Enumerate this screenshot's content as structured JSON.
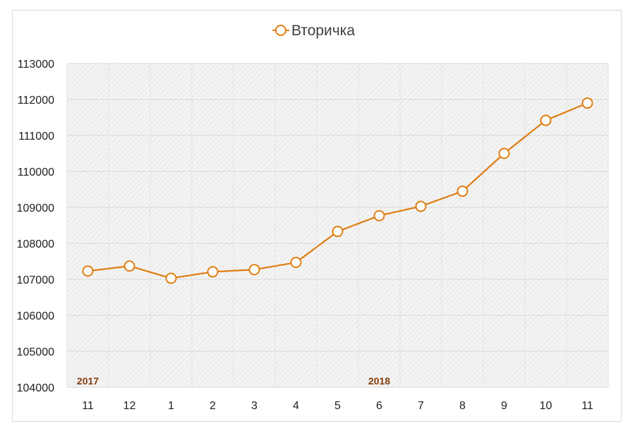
{
  "chart_data": {
    "type": "line",
    "title": "",
    "xlabel": "",
    "ylabel": "",
    "categories": [
      "11",
      "12",
      "1",
      "2",
      "3",
      "4",
      "5",
      "6",
      "7",
      "8",
      "9",
      "10",
      "11"
    ],
    "series": [
      {
        "name": "Вторичка",
        "color": "#e07d10",
        "values": [
          107230,
          107370,
          107030,
          107210,
          107270,
          107470,
          108330,
          108770,
          109030,
          109450,
          110500,
          111420,
          111900
        ]
      }
    ],
    "ylim": [
      104000,
      113000
    ],
    "yticks": [
      104000,
      105000,
      106000,
      107000,
      108000,
      109000,
      110000,
      111000,
      112000,
      113000
    ],
    "year_labels": [
      {
        "text": "2017",
        "category_index": 0
      },
      {
        "text": "2018",
        "category_index": 7
      }
    ],
    "legend_position": "top",
    "grid": true,
    "plot_background": "hatched light gray"
  }
}
